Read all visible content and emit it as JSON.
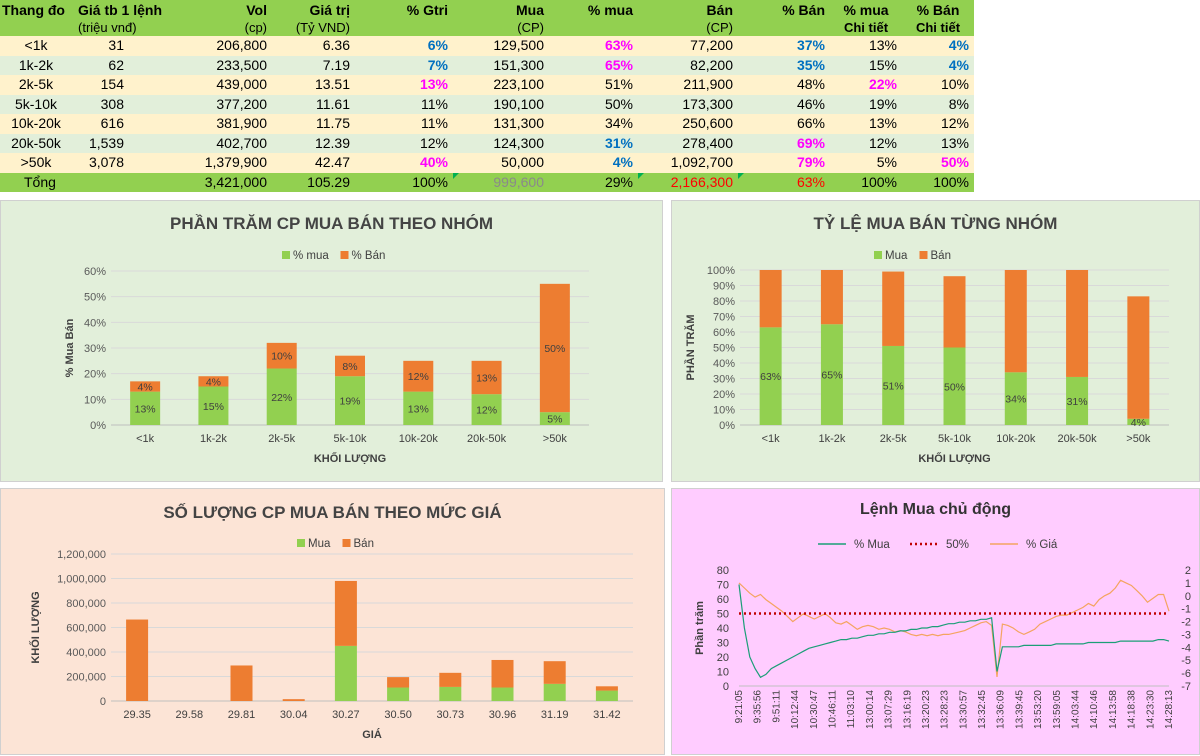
{
  "table": {
    "headers": [
      {
        "main": "Thang đo",
        "sub": ""
      },
      {
        "main": "Giá tb 1 lệnh",
        "sub": "(triệu vnđ)"
      },
      {
        "main": "Vol",
        "sub": "(cp)"
      },
      {
        "main": "Giá trị",
        "sub": "(Tỷ VND)"
      },
      {
        "main": "% Gtri",
        "sub": ""
      },
      {
        "main": "Mua",
        "sub": "(CP)"
      },
      {
        "main": "% mua",
        "sub": ""
      },
      {
        "main": "Bán",
        "sub": "(CP)"
      },
      {
        "main": "% Bán",
        "sub": ""
      },
      {
        "main": "% mua",
        "sub": "Chi tiết"
      },
      {
        "main": "% Bán",
        "sub": "Chi tiết"
      }
    ],
    "rows": [
      {
        "cells": [
          "<1k",
          "31",
          "206,800",
          "6.36",
          "6%",
          "129,500",
          "63%",
          "77,200",
          "37%",
          "13%",
          "4%"
        ],
        "hl": [
          "",
          "",
          "",
          "",
          "blue",
          "",
          "mag",
          "",
          "blue",
          "",
          "blue"
        ]
      },
      {
        "cells": [
          "1k-2k",
          "62",
          "233,500",
          "7.19",
          "7%",
          "151,300",
          "65%",
          "82,200",
          "35%",
          "15%",
          "4%"
        ],
        "hl": [
          "",
          "",
          "",
          "",
          "blue",
          "",
          "mag",
          "",
          "blue",
          "",
          "blue"
        ]
      },
      {
        "cells": [
          "2k-5k",
          "154",
          "439,000",
          "13.51",
          "13%",
          "223,100",
          "51%",
          "211,900",
          "48%",
          "22%",
          "10%"
        ],
        "hl": [
          "",
          "",
          "",
          "",
          "mag",
          "",
          "",
          "",
          "",
          "mag",
          ""
        ]
      },
      {
        "cells": [
          "5k-10k",
          "308",
          "377,200",
          "11.61",
          "11%",
          "190,100",
          "50%",
          "173,300",
          "46%",
          "19%",
          "8%"
        ],
        "hl": [
          "",
          "",
          "",
          "",
          "",
          "",
          "",
          "",
          "",
          "",
          ""
        ]
      },
      {
        "cells": [
          "10k-20k",
          "616",
          "381,900",
          "11.75",
          "11%",
          "131,300",
          "34%",
          "250,600",
          "66%",
          "13%",
          "12%"
        ],
        "hl": [
          "",
          "",
          "",
          "",
          "",
          "",
          "",
          "",
          "",
          "",
          ""
        ]
      },
      {
        "cells": [
          "20k-50k",
          "1,539",
          "402,700",
          "12.39",
          "12%",
          "124,300",
          "31%",
          "278,400",
          "69%",
          "12%",
          "13%"
        ],
        "hl": [
          "",
          "",
          "",
          "",
          "",
          "",
          "blue",
          "",
          "mag",
          "",
          ""
        ]
      },
      {
        "cells": [
          ">50k",
          "3,078",
          "1,379,900",
          "42.47",
          "40%",
          "50,000",
          "4%",
          "1,092,700",
          "79%",
          "5%",
          "50%"
        ],
        "hl": [
          "",
          "",
          "",
          "",
          "mag",
          "",
          "blue",
          "",
          "mag",
          "",
          "mag"
        ]
      }
    ],
    "total": {
      "cells": [
        "Tổng",
        "",
        "3,421,000",
        "105.29",
        "100%",
        "999,600",
        "29%",
        "2,166,300",
        "63%",
        "100%",
        "100%"
      ]
    }
  },
  "chart_data": [
    {
      "type": "bar",
      "stacked": true,
      "title": "PHẦN TRĂM CP MUA BÁN THEO NHÓM",
      "categories": [
        "<1k",
        "1k-2k",
        "2k-5k",
        "5k-10k",
        "10k-20k",
        "20k-50k",
        ">50k"
      ],
      "series": [
        {
          "name": "% mua",
          "values": [
            13,
            15,
            22,
            19,
            13,
            12,
            5
          ],
          "color": "#92D050"
        },
        {
          "name": "% Bán",
          "values": [
            4,
            4,
            10,
            8,
            12,
            13,
            50
          ],
          "color": "#ED7D31"
        }
      ],
      "labels": [
        [
          "13%",
          "15%",
          "22%",
          "19%",
          "13%",
          "12%",
          "5%"
        ],
        [
          "4%",
          "4%",
          "10%",
          "8%",
          "12%",
          "13%",
          "50%"
        ]
      ],
      "xlabel": "KHỐI LƯỢNG",
      "ylabel": "% Mua Bán",
      "yticks": [
        "0%",
        "10%",
        "20%",
        "30%",
        "40%",
        "50%",
        "60%"
      ],
      "ylim": [
        0,
        60
      ]
    },
    {
      "type": "bar",
      "stacked": true,
      "title": "TỶ LỆ MUA BÁN TỪNG NHÓM",
      "categories": [
        "<1k",
        "1k-2k",
        "2k-5k",
        "5k-10k",
        "10k-20k",
        "20k-50k",
        ">50k"
      ],
      "series": [
        {
          "name": "Mua",
          "values": [
            63,
            65,
            51,
            50,
            34,
            31,
            4
          ],
          "color": "#92D050"
        },
        {
          "name": "Bán",
          "values": [
            37,
            35,
            48,
            46,
            66,
            69,
            79
          ],
          "color": "#ED7D31"
        }
      ],
      "labels": [
        [
          "63%",
          "65%",
          "51%",
          "50%",
          "34%",
          "31%",
          "4%"
        ],
        [
          "",
          "",
          "",
          "",
          "",
          "",
          ""
        ]
      ],
      "xlabel": "KHỐI LƯỢNG",
      "ylabel": "PHẦN TRĂM",
      "yticks": [
        "0%",
        "10%",
        "20%",
        "30%",
        "40%",
        "50%",
        "60%",
        "70%",
        "80%",
        "90%",
        "100%"
      ],
      "ylim": [
        0,
        100
      ]
    },
    {
      "type": "bar",
      "stacked": true,
      "title": "SỐ LƯỢNG CP MUA BÁN THEO MỨC GIÁ",
      "categories": [
        "29.35",
        "29.58",
        "29.81",
        "30.04",
        "30.27",
        "30.50",
        "30.73",
        "30.96",
        "31.19",
        "31.42"
      ],
      "series": [
        {
          "name": "Mua",
          "values": [
            0,
            0,
            0,
            0,
            450000,
            110000,
            115000,
            110000,
            140000,
            85000
          ],
          "color": "#92D050"
        },
        {
          "name": "Bán",
          "values": [
            665000,
            0,
            290000,
            15000,
            530000,
            85000,
            115000,
            225000,
            185000,
            35000
          ],
          "color": "#ED7D31"
        }
      ],
      "xlabel": "GIÁ",
      "ylabel": "KHỐI LƯỢNG",
      "yticks": [
        "0",
        "200,000",
        "400,000",
        "600,000",
        "800,000",
        "1,000,000",
        "1,200,000"
      ],
      "ylim": [
        0,
        1200000
      ]
    },
    {
      "type": "line",
      "title": "Lệnh Mua chủ động",
      "legend": [
        "% Mua",
        "50%",
        "% Giá"
      ],
      "ylabel": "Phần trăm",
      "ylim": [
        0,
        80
      ],
      "yticks": [
        "0",
        "10",
        "20",
        "30",
        "40",
        "50",
        "60",
        "70",
        "80"
      ],
      "y2lim": [
        -7,
        2
      ],
      "y2ticks": [
        "2",
        "1",
        "0",
        "-1",
        "-2",
        "-3",
        "-4",
        "-5",
        "-6",
        "-7"
      ],
      "xticks": [
        "9:21:05",
        "9:35:56",
        "9:51:11",
        "10:12:44",
        "10:30:47",
        "10:46:11",
        "11:03:10",
        "13:00:14",
        "13:07:29",
        "13:16:19",
        "13:20:23",
        "13:28:23",
        "13:30:57",
        "13:32:45",
        "13:36:09",
        "13:39:45",
        "13:53:20",
        "13:59:05",
        "14:03:44",
        "14:10:46",
        "14:13:58",
        "14:18:38",
        "14:23:30",
        "14:28:13"
      ],
      "mua_series": [
        70,
        40,
        20,
        12,
        6,
        8,
        12,
        14,
        16,
        18,
        20,
        22,
        24,
        26,
        27,
        28,
        29,
        30,
        31,
        32,
        32,
        33,
        33,
        34,
        35,
        35,
        36,
        36,
        37,
        37,
        38,
        38,
        39,
        39,
        40,
        40,
        41,
        41,
        42,
        43,
        43,
        44,
        44,
        45,
        45,
        46,
        46,
        47,
        10,
        27,
        27,
        27,
        27,
        28,
        28,
        28,
        28,
        28,
        28,
        29,
        29,
        29,
        29,
        29,
        29,
        30,
        30,
        30,
        30,
        30,
        30,
        31,
        31,
        31,
        31,
        31,
        31,
        31,
        32,
        32,
        31
      ],
      "fifty_series": [
        50,
        50
      ],
      "gia_series": [
        1.0,
        0.6,
        0.2,
        -0.1,
        0.1,
        -0.3,
        -0.6,
        -0.9,
        -1.2,
        -1.6,
        -2.0,
        -1.7,
        -1.4,
        -1.6,
        -1.8,
        -1.6,
        -1.4,
        -1.7,
        -2.1,
        -2.2,
        -2.0,
        -2.3,
        -2.6,
        -2.4,
        -2.3,
        -2.4,
        -2.6,
        -2.5,
        -2.6,
        -2.8,
        -2.7,
        -2.8,
        -3.0,
        -3.1,
        -3.0,
        -3.1,
        -3.0,
        -3.1,
        -3.0,
        -3.0,
        -2.9,
        -2.8,
        -2.7,
        -2.5,
        -2.3,
        -2.1,
        -2.0,
        -2.3,
        -6.3,
        -2.2,
        -2.3,
        -2.5,
        -2.8,
        -3.0,
        -2.8,
        -2.6,
        -2.2,
        -2.0,
        -1.8,
        -1.6,
        -1.5,
        -1.5,
        -1.3,
        -1.1,
        -0.9,
        -0.6,
        -0.8,
        -0.3,
        0.0,
        0.2,
        0.6,
        1.2,
        1.0,
        0.8,
        0.4,
        0.0,
        -0.5,
        -0.2,
        0.1,
        0.1,
        -1.2
      ]
    }
  ]
}
